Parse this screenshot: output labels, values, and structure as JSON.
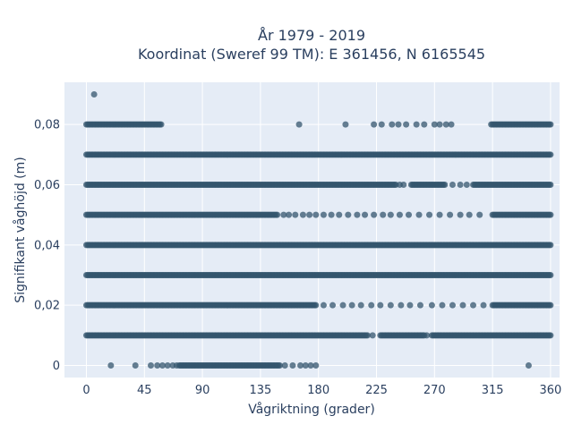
{
  "chart_data": {
    "type": "scatter",
    "title_line1": "År 1979 - 2019",
    "title_line2": "Koordinat (Sweref 99 TM): E 361456, N 6165545",
    "xlabel": "Vågriktning (grader)",
    "ylabel": "Signifikant våghöjd (m)",
    "xlim": [
      -17,
      367
    ],
    "ylim": [
      -0.004,
      0.094
    ],
    "x_ticks": [
      0,
      45,
      90,
      135,
      180,
      225,
      270,
      315,
      360
    ],
    "y_ticks": [
      0,
      0.02,
      0.04,
      0.06,
      0.08
    ],
    "y_tick_labels": [
      "0",
      "0,02",
      "0,04",
      "0,06",
      "0,08"
    ],
    "grid": true,
    "marker_color": "#34566e",
    "background_color": "#e5ecf6",
    "rows": [
      {
        "y": 0.09,
        "segments": [],
        "points": [
          6
        ]
      },
      {
        "y": 0.08,
        "segments": [
          [
            0,
            58
          ],
          [
            314,
            360
          ]
        ],
        "points": [
          165,
          201,
          223,
          229,
          237,
          242,
          248,
          256,
          262,
          270,
          274,
          279,
          283
        ]
      },
      {
        "y": 0.07,
        "segments": [
          [
            0,
            360
          ]
        ],
        "points": []
      },
      {
        "y": 0.06,
        "segments": [
          [
            0,
            240
          ],
          [
            252,
            278
          ],
          [
            300,
            360
          ]
        ],
        "points": [
          243,
          246,
          284,
          290,
          295
        ]
      },
      {
        "y": 0.05,
        "segments": [
          [
            0,
            148
          ],
          [
            315,
            360
          ]
        ],
        "points": [
          153,
          157,
          162,
          168,
          173,
          178,
          184,
          190,
          196,
          203,
          210,
          216,
          223,
          230,
          236,
          243,
          250,
          258,
          266,
          274,
          282,
          290,
          297,
          305
        ]
      },
      {
        "y": 0.04,
        "segments": [
          [
            0,
            360
          ]
        ],
        "points": []
      },
      {
        "y": 0.03,
        "segments": [
          [
            0,
            360
          ]
        ],
        "points": []
      },
      {
        "y": 0.02,
        "segments": [
          [
            0,
            178
          ],
          [
            315,
            360
          ]
        ],
        "points": [
          184,
          191,
          199,
          206,
          213,
          221,
          228,
          236,
          244,
          251,
          259,
          268,
          276,
          284,
          292,
          300,
          308
        ]
      },
      {
        "y": 0.01,
        "segments": [
          [
            0,
            218
          ],
          [
            228,
            262
          ],
          [
            268,
            360
          ]
        ],
        "points": [
          222,
          264
        ]
      },
      {
        "y": 0.0,
        "segments": [
          [
            72,
            150
          ]
        ],
        "points": [
          19,
          38,
          50,
          55,
          59,
          63,
          67,
          70,
          154,
          160,
          166,
          170,
          174,
          178,
          343
        ]
      }
    ]
  }
}
